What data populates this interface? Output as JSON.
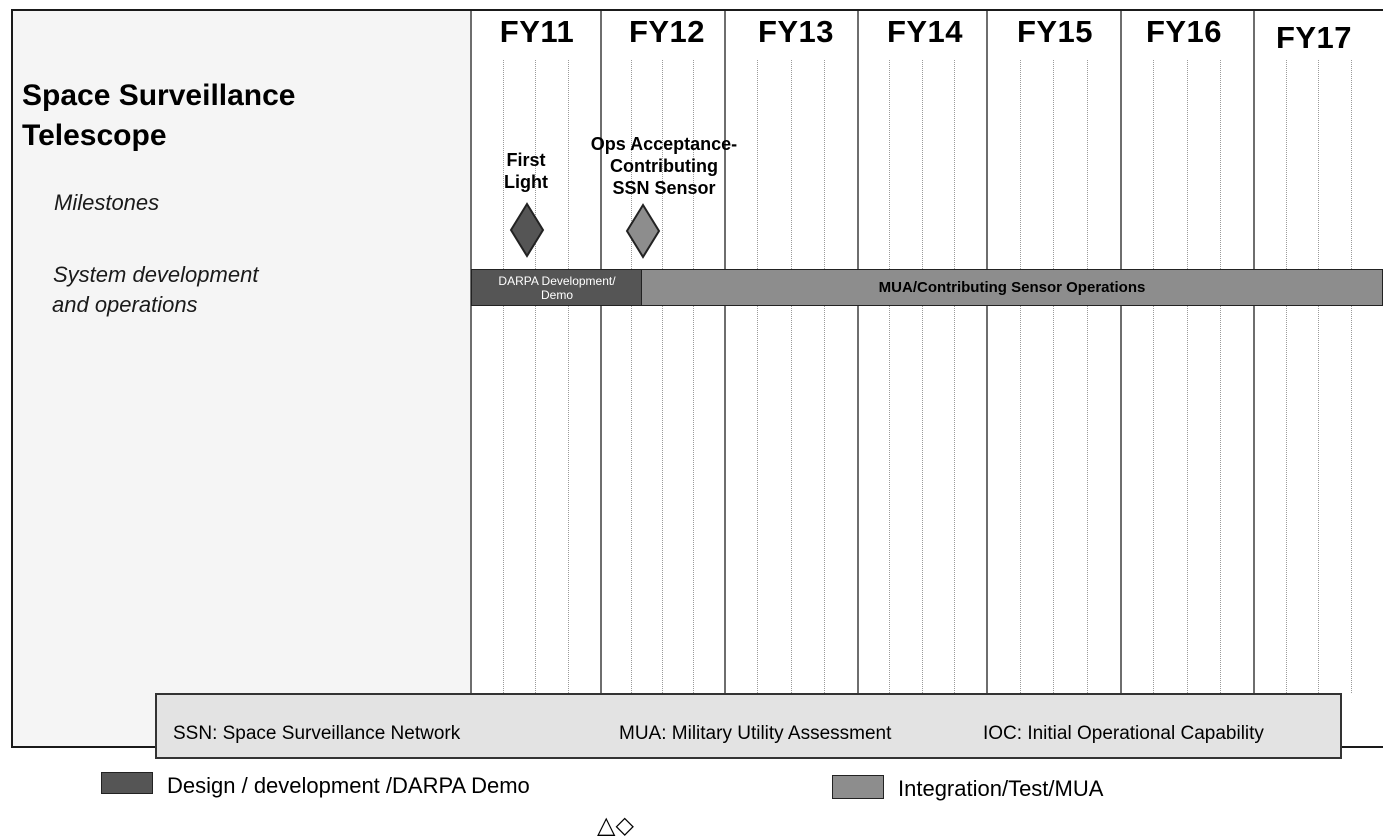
{
  "title": "Space Surveillance Telescope",
  "years": [
    "FY11",
    "FY12",
    "FY13",
    "FY14",
    "FY15",
    "FY16",
    "FY17"
  ],
  "rows": {
    "milestones": "Milestones",
    "system_line1": "System development",
    "system_line2": "and operations"
  },
  "milestones": [
    {
      "lines": [
        "First",
        "Light"
      ],
      "phase": "design"
    },
    {
      "lines": [
        "Ops Acceptance-",
        "Contributing",
        "SSN Sensor"
      ],
      "phase": "integration"
    }
  ],
  "bars": {
    "dev_line1": "DARPA Development/",
    "dev_line2": "Demo",
    "ops": "MUA/Contributing Sensor Operations"
  },
  "abbreviations": [
    "SSN: Space Surveillance Network",
    "MUA: Military Utility Assessment",
    "IOC: Initial Operational Capability"
  ],
  "legend": {
    "design": "Design / development /DARPA Demo",
    "integration": "Integration/Test/MUA"
  },
  "symbols": "△◇",
  "colors": {
    "design": "#555555",
    "integration": "#8d8d8d"
  }
}
